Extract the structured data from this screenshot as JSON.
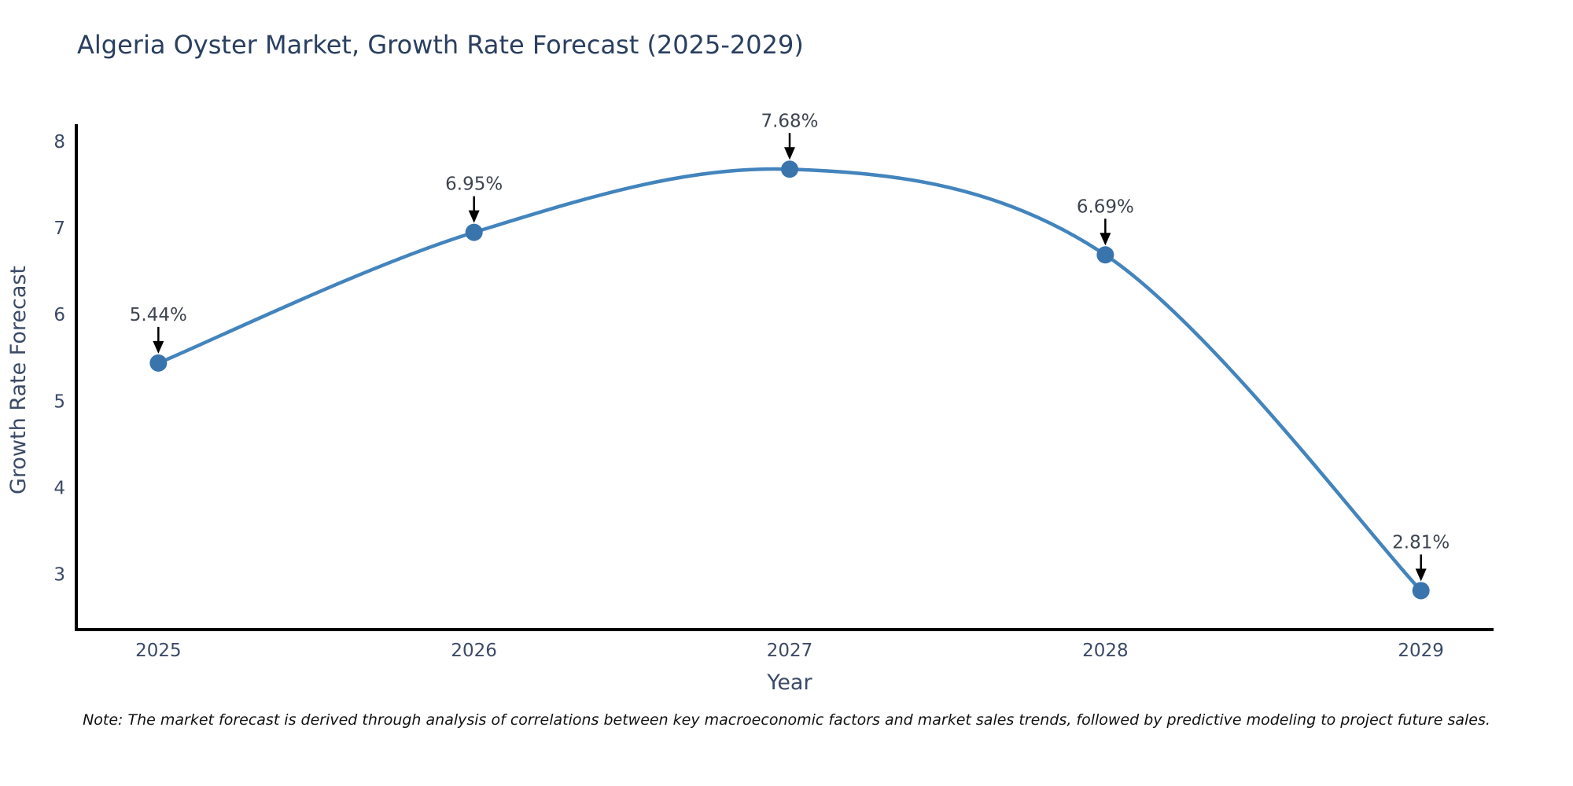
{
  "title": "Algeria Oyster Market, Growth Rate Forecast (2025-2029)",
  "note": "Note: The market forecast is derived through analysis of correlations between key macroeconomic factors and market sales trends, followed by predictive modeling to project future sales.",
  "chart_data": {
    "type": "line",
    "title": "Algeria Oyster Market, Growth Rate Forecast (2025-2029)",
    "xlabel": "Year",
    "ylabel": "Growth Rate Forecast",
    "x": [
      2025,
      2026,
      2027,
      2028,
      2029
    ],
    "values": [
      5.44,
      6.95,
      7.68,
      6.69,
      2.81
    ],
    "point_labels": [
      "5.44%",
      "6.95%",
      "7.68%",
      "6.69%",
      "2.81%"
    ],
    "xticks": [
      2025,
      2026,
      2027,
      2028,
      2029
    ],
    "yticks": [
      3,
      4,
      5,
      6,
      7,
      8
    ],
    "xlim": [
      2024.74,
      2029.23
    ],
    "ylim": [
      2.36,
      8.2
    ],
    "grid": false,
    "legend": "none",
    "smooth_spline": true,
    "annotation_arrows": true,
    "colors": {
      "line": "#4384bd",
      "marker": "#3a74ad",
      "axis": "#000000",
      "title": "#2a3f5f",
      "tick_label": "#3b4a66",
      "annotation": "#3d4450",
      "arrow": "#000000"
    }
  }
}
